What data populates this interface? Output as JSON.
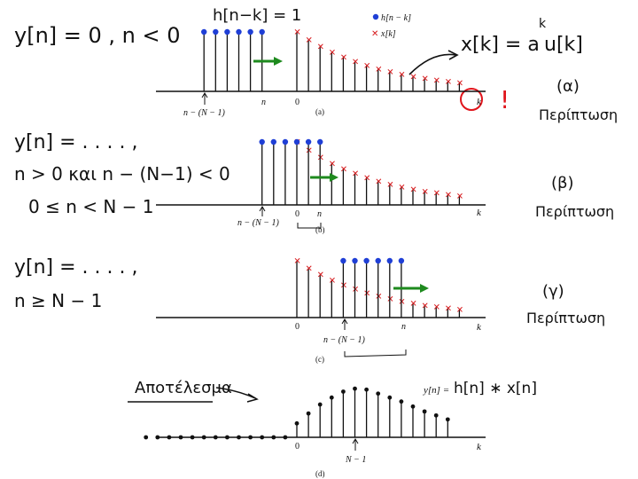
{
  "left_notes": {
    "a_condition": "y[n] = 0 , n < 0",
    "b_condition_1": "y[n] = . . . . ,",
    "b_condition_2": "n > 0   και   n − (N−1) < 0",
    "b_condition_3": "0 ≤ n < N − 1",
    "c_condition_1": "y[n] = . . . . ,",
    "c_condition_2": "n ≥ N − 1"
  },
  "cases": {
    "a_label": "(α)",
    "a_word": "Περίπτωση",
    "b_label": "(β)",
    "b_word": "Περίπτωση",
    "c_label": "(γ)",
    "c_word": "Περίπτωση"
  },
  "annotations": {
    "h_equals_one": "h[n−k] = 1",
    "x_formula": "x[k] = a",
    "x_formula_exp": "k",
    "x_formula_tail": "u[k]",
    "exclamation": "!",
    "result_word": "Αποτέλεσμα",
    "result_formula_printed": "y[n] =",
    "result_formula_hand": "h[n] ∗ x[n]"
  },
  "legend": {
    "h_label": "h[n − k]",
    "x_label": "x[k]"
  },
  "axis_labels": {
    "k": "k",
    "zero": "0",
    "n": "n",
    "n_minus": "n − (N − 1)",
    "N_minus_1": "N − 1",
    "n_minus_c": "n − (N − 1)"
  },
  "subplot_captions": {
    "a": "(a)",
    "b": "(b)",
    "c": "(c)",
    "d": "(d)"
  },
  "colors": {
    "ink": "#111111",
    "blue_marker": "#1f3fd6",
    "red_marker": "#d7191c",
    "green_arrow": "#1e8a1e",
    "red_circle": "#e0141b"
  },
  "signals": {
    "window_length_N": 6,
    "x_decay_a": 0.87,
    "x_samples_shown": 15,
    "result_y": [
      0,
      0,
      0,
      0,
      0,
      0,
      0,
      0,
      0,
      0,
      0,
      0,
      0,
      1.4,
      2.4,
      3.3,
      4.0,
      4.6,
      4.9,
      4.8,
      4.4,
      4.0,
      3.6,
      3.1,
      2.6,
      2.2,
      1.8
    ]
  }
}
